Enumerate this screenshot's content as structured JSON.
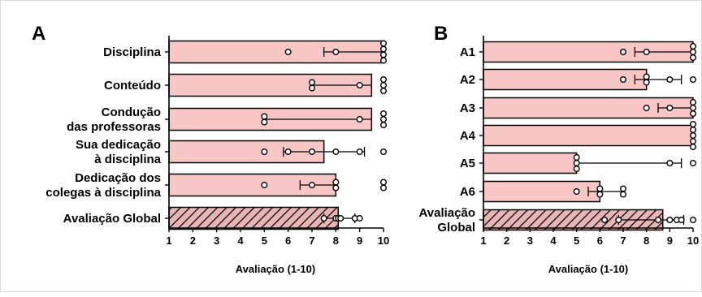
{
  "chart_data": [
    {
      "type": "bar",
      "panel": "A",
      "orientation": "horizontal",
      "categories": [
        [
          "Disciplina"
        ],
        [
          "Conteúdo"
        ],
        [
          "Condução",
          "das professoras"
        ],
        [
          "Sua dedicação",
          "à disciplina"
        ],
        [
          "Dedicação dos",
          "colegas à disciplina"
        ],
        [
          "Avaliação Global"
        ]
      ],
      "values": [
        10,
        9.5,
        9.5,
        7.5,
        8,
        8.1
      ],
      "error_low": [
        7.5,
        7,
        5,
        5.8,
        6.5,
        7.5
      ],
      "error_high": [
        null,
        null,
        null,
        9.2,
        null,
        8.8
      ],
      "points": [
        [
          6,
          8,
          10,
          10,
          10,
          10
        ],
        [
          7,
          7,
          9,
          10,
          10,
          10
        ],
        [
          5,
          5,
          9,
          10,
          10,
          10
        ],
        [
          5,
          6,
          7,
          8,
          9,
          10
        ],
        [
          5,
          7,
          8,
          8,
          10,
          10
        ],
        [
          7.5,
          8,
          8.1,
          8.2,
          8.8,
          9
        ]
      ],
      "hatched": [
        false,
        false,
        false,
        false,
        false,
        true
      ],
      "xlabel": "Avaliação (1-10)",
      "xlim": [
        1,
        10
      ],
      "xticks": [
        1,
        2,
        3,
        4,
        5,
        6,
        7,
        8,
        9,
        10
      ]
    },
    {
      "type": "bar",
      "panel": "B",
      "orientation": "horizontal",
      "categories": [
        [
          "A1"
        ],
        [
          "A2"
        ],
        [
          "A3"
        ],
        [
          "A4"
        ],
        [
          "A5"
        ],
        [
          "A6"
        ],
        [
          "Avaliação",
          "Global"
        ]
      ],
      "values": [
        10,
        8,
        10,
        10,
        5,
        6,
        8.7
      ],
      "error_low": [
        7.5,
        7.5,
        8.5,
        null,
        null,
        5.5,
        6.8
      ],
      "error_high": [
        null,
        9.5,
        null,
        null,
        9.5,
        7,
        9.6
      ],
      "points": [
        [
          7,
          8,
          10,
          10,
          10
        ],
        [
          7,
          8,
          8,
          9,
          10
        ],
        [
          8,
          9,
          10,
          10,
          10
        ],
        [
          10,
          10,
          10,
          10,
          10
        ],
        [
          5,
          5,
          5,
          9,
          10
        ],
        [
          5,
          6,
          6,
          7,
          7
        ],
        [
          6.2,
          6.8,
          8.5,
          9,
          9.3,
          9.5,
          10
        ]
      ],
      "hatched": [
        false,
        false,
        false,
        false,
        false,
        false,
        true
      ],
      "xlabel": "Avaliação (1-10)",
      "xlim": [
        1,
        10
      ],
      "xticks": [
        1,
        2,
        3,
        4,
        5,
        6,
        7,
        8,
        9,
        10
      ]
    }
  ],
  "colors": {
    "bar_fill": "#f9c6c6",
    "hatch_fill": "#e8b5b5",
    "stroke": "#000000",
    "point_fill": "#ffffff"
  }
}
